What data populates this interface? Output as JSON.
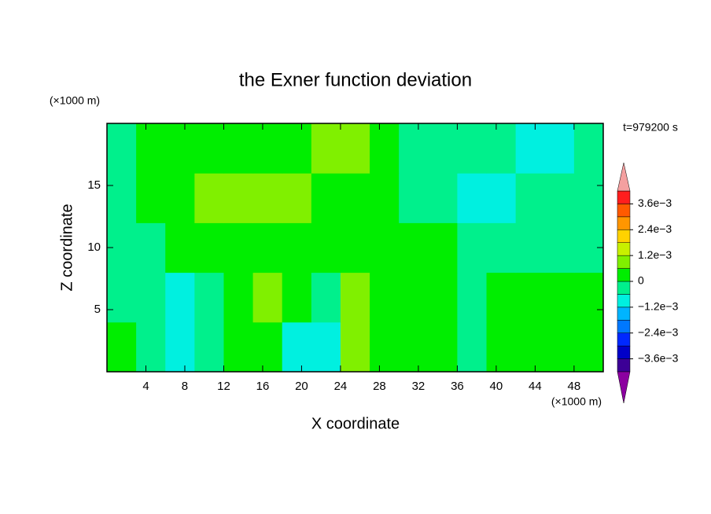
{
  "chart_data": {
    "type": "contour",
    "title": "the Exner function deviation",
    "xlabel": "X coordinate",
    "ylabel": "Z coordinate",
    "x_unit": "(×1000 m)",
    "y_unit": "(×1000 m)",
    "annotation": "t=979200 s",
    "xlim": [
      0,
      51
    ],
    "ylim": [
      0,
      20
    ],
    "xticks": [
      4,
      8,
      12,
      16,
      20,
      24,
      28,
      32,
      36,
      40,
      44,
      48
    ],
    "yticks": [
      5,
      10,
      15
    ],
    "x_edges": [
      0,
      3,
      6,
      9,
      12,
      15,
      18,
      21,
      24,
      27,
      30,
      33,
      36,
      39,
      42,
      45,
      48,
      51
    ],
    "y_edges": [
      0,
      4,
      8,
      12,
      16,
      20
    ],
    "z": [
      [
        0.0003,
        -0.0003,
        -0.0009,
        -0.0003,
        0.0003,
        0.0003,
        -0.0009,
        -0.0009,
        0.0009,
        0.0003,
        0.0003,
        0.0003,
        -0.0003,
        0.0003,
        0.0003,
        0.0003,
        0.0003
      ],
      [
        -0.0003,
        -0.0003,
        -0.0009,
        -0.0003,
        0.0003,
        0.0009,
        0.0003,
        -0.0003,
        0.0009,
        0.0003,
        0.0003,
        0.0003,
        -0.0003,
        0.0003,
        0.0003,
        0.0003,
        0.0003
      ],
      [
        -0.0003,
        -0.0003,
        0.0003,
        0.0003,
        0.0003,
        0.0003,
        0.0003,
        0.0003,
        0.0003,
        0.0003,
        0.0003,
        0.0003,
        -0.0003,
        -0.0003,
        -0.0003,
        -0.0003,
        -0.0003
      ],
      [
        -0.0003,
        0.0003,
        0.0003,
        0.0009,
        0.0009,
        0.0009,
        0.0009,
        0.0003,
        0.0003,
        0.0003,
        -0.0003,
        -0.0003,
        -0.0009,
        -0.0009,
        -0.0003,
        -0.0003,
        -0.0003
      ],
      [
        -0.0003,
        0.0003,
        0.0003,
        0.0003,
        0.0003,
        0.0003,
        0.0003,
        0.0009,
        0.0009,
        0.0003,
        -0.0003,
        -0.0003,
        -0.0003,
        -0.0003,
        -0.0009,
        -0.0009,
        -0.0003
      ]
    ],
    "levels": [
      -0.0042,
      -0.0036,
      -0.003,
      -0.0024,
      -0.0018,
      -0.0012,
      -0.0006,
      0,
      0.0006,
      0.0012,
      0.0018,
      0.0024,
      0.003,
      0.0036,
      0.0042
    ],
    "level_colors": [
      "#3c0096",
      "#0000c8",
      "#0028ff",
      "#0078ff",
      "#00b4ff",
      "#00f0e0",
      "#00f08c",
      "#00ee00",
      "#80f000",
      "#c8f000",
      "#ffd200",
      "#ff9600",
      "#ff5a00",
      "#ff1e1e"
    ],
    "under_color": "#8c00a0",
    "over_color": "#f4a0a0",
    "colorbar_ticks": [
      {
        "value": -0.0036,
        "label": "−3.6e−3"
      },
      {
        "value": -0.0024,
        "label": "−2.4e−3"
      },
      {
        "value": -0.0012,
        "label": "−1.2e−3"
      },
      0,
      {
        "value": 0.0012,
        "label": "1.2e−3"
      },
      {
        "value": 0.0024,
        "label": "2.4e−3"
      },
      {
        "value": 0.0036,
        "label": "3.6e−3"
      }
    ]
  }
}
